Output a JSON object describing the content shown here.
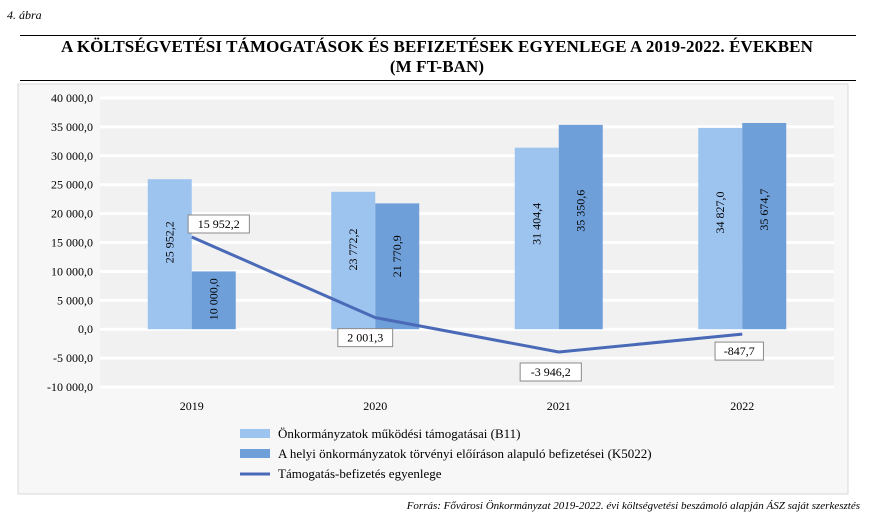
{
  "figure_label": "4. ábra",
  "title_line1": "A KÖLTSÉGVETÉSI TÁMOGATÁSOK ÉS BEFIZETÉSEK EGYENLEGE A 2019-2022. ÉVEKBEN",
  "title_line2": "(M FT-BAN)",
  "source": "Forrás: Fővárosi Önkormányzat 2019-2022. évi költségvetési beszámoló alapján ÁSZ saját szerkesztés",
  "colors": {
    "b11": "#9dc3ef",
    "k5022": "#6f9fd9",
    "line": "#4a6ab8",
    "plot_bg": "#f1f1f1",
    "outer_bg": "#f7f7f7"
  },
  "chart_data": {
    "type": "bar+line",
    "categories": [
      "2019",
      "2020",
      "2021",
      "2022"
    ],
    "series": [
      {
        "name": "Önkormányzatok működési támogatásai (B11)",
        "type": "bar",
        "values": [
          25952.2,
          23772.2,
          31404.4,
          34827.0
        ],
        "labels": [
          "25 952,2",
          "23 772,2",
          "31 404,4",
          "34 827,0"
        ]
      },
      {
        "name": "A helyi önkormányzatok törvényi előíráson alapuló befizetései (K5022)",
        "type": "bar",
        "values": [
          10000.0,
          21770.9,
          35350.6,
          35674.7
        ],
        "labels": [
          "10 000,0",
          "21 770,9",
          "35 350,6",
          "35 674,7"
        ]
      },
      {
        "name": "Támogatás-befizetés egyenlege",
        "type": "line",
        "values": [
          15952.2,
          2001.3,
          -3946.2,
          -847.7
        ],
        "labels": [
          "15 952,2",
          "2 001,3",
          "-3 946,2",
          "-847,7"
        ]
      }
    ],
    "ylim": [
      -10000,
      40000
    ],
    "yticks": [
      40000,
      35000,
      30000,
      25000,
      20000,
      15000,
      10000,
      5000,
      0,
      -5000,
      -10000
    ],
    "ytick_labels": [
      "40 000,0",
      "35 000,0",
      "30 000,0",
      "25 000,0",
      "20 000,0",
      "15 000,0",
      "10 000,0",
      "5 000,0",
      "0,0",
      "-5 000,0",
      "-10 000,0"
    ],
    "grid": true,
    "legend_position": "bottom-left"
  }
}
